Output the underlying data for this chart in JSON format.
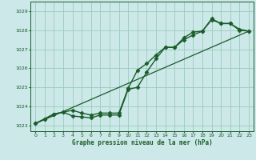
{
  "xlabel": "Graphe pression niveau de la mer (hPa)",
  "background_color": "#cce8e8",
  "grid_color": "#99ccbb",
  "line_color": "#1a5c2a",
  "xlim": [
    -0.5,
    23.5
  ],
  "ylim": [
    1022.7,
    1029.5
  ],
  "yticks": [
    1023,
    1024,
    1025,
    1026,
    1027,
    1028,
    1029
  ],
  "xticks": [
    0,
    1,
    2,
    3,
    4,
    5,
    6,
    7,
    8,
    9,
    10,
    11,
    12,
    13,
    14,
    15,
    16,
    17,
    18,
    19,
    20,
    21,
    22,
    23
  ],
  "series": [
    {
      "x": [
        0,
        1,
        2,
        3,
        4,
        5,
        6,
        7,
        8,
        9,
        10,
        11,
        12,
        13,
        14,
        15,
        16,
        17,
        18,
        19,
        20,
        21,
        22,
        23
      ],
      "y": [
        1023.1,
        1023.35,
        1023.6,
        1023.7,
        1023.5,
        1023.45,
        1023.4,
        1023.55,
        1023.55,
        1023.55,
        1024.9,
        1025.0,
        1025.8,
        1026.5,
        1027.1,
        1027.1,
        1027.6,
        1027.9,
        1027.95,
        1028.55,
        1028.35,
        1028.35,
        1028.0,
        1027.95
      ],
      "marker": "D",
      "markersize": 2.5,
      "linewidth": 1.0
    },
    {
      "x": [
        0,
        1,
        2,
        3,
        4,
        5,
        6,
        7,
        8,
        9,
        10,
        11,
        12,
        13,
        14,
        15,
        16,
        17,
        18,
        19,
        20,
        21,
        22,
        23
      ],
      "y": [
        1023.1,
        1023.35,
        1023.6,
        1023.7,
        1023.8,
        1023.65,
        1023.55,
        1023.65,
        1023.65,
        1023.65,
        1024.95,
        1025.9,
        1026.25,
        1026.7,
        1027.1,
        1027.1,
        1027.5,
        1027.75,
        1027.95,
        1028.6,
        1028.35,
        1028.35,
        1028.05,
        1027.95
      ],
      "marker": "D",
      "markersize": 2.5,
      "linewidth": 1.0
    },
    {
      "x": [
        0,
        23
      ],
      "y": [
        1023.1,
        1027.95
      ],
      "marker": null,
      "markersize": 0,
      "linewidth": 0.9
    }
  ]
}
